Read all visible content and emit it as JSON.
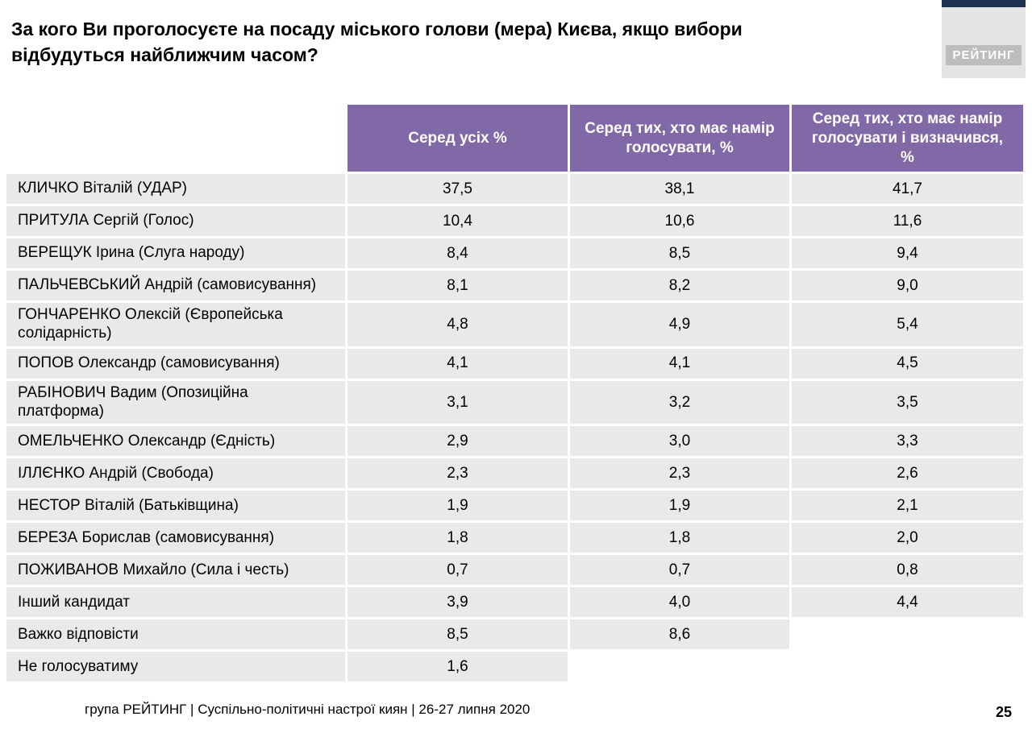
{
  "header": {
    "title": "За кого Ви проголосуєте на посаду міського голови (мера) Києва, якщо вибори відбудуться найближчим часом?",
    "logo_text": "РЕЙТИНГ"
  },
  "chart_data": {
    "type": "table",
    "columns": [
      "Серед усіх %",
      "Серед тих, хто має намір голосувати, %",
      "Серед тих, хто має намір голосувати і визначився, %"
    ],
    "rows": [
      {
        "label": "КЛИЧКО Віталій (УДАР)",
        "values": [
          "37,5",
          "38,1",
          "41,7"
        ]
      },
      {
        "label": "ПРИТУЛА Сергій (Голос)",
        "values": [
          "10,4",
          "10,6",
          "11,6"
        ]
      },
      {
        "label": "ВЕРЕЩУК Ірина (Слуга народу)",
        "values": [
          "8,4",
          "8,5",
          "9,4"
        ]
      },
      {
        "label": "ПАЛЬЧЕВСЬКИЙ Андрій (самовисування)",
        "values": [
          "8,1",
          "8,2",
          "9,0"
        ]
      },
      {
        "label": "ГОНЧАРЕНКО Олексій (Європейська солідарність)",
        "values": [
          "4,8",
          "4,9",
          "5,4"
        ]
      },
      {
        "label": "ПОПОВ Олександр (самовисування)",
        "values": [
          "4,1",
          "4,1",
          "4,5"
        ]
      },
      {
        "label": "РАБІНОВИЧ Вадим (Опозиційна платформа)",
        "values": [
          "3,1",
          "3,2",
          "3,5"
        ]
      },
      {
        "label": "ОМЕЛЬЧЕНКО Олександр (Єдність)",
        "values": [
          "2,9",
          "3,0",
          "3,3"
        ]
      },
      {
        "label": "ІЛЛЄНКО Андрій (Свобода)",
        "values": [
          "2,3",
          "2,3",
          "2,6"
        ]
      },
      {
        "label": "НЕСТОР Віталій (Батьківщина)",
        "values": [
          "1,9",
          "1,9",
          "2,1"
        ]
      },
      {
        "label": "БЕРЕЗА Борислав (самовисування)",
        "values": [
          "1,8",
          "1,8",
          "2,0"
        ]
      },
      {
        "label": "ПОЖИВАНОВ Михайло (Сила і честь)",
        "values": [
          "0,7",
          "0,7",
          "0,8"
        ]
      },
      {
        "label": "Інший кандидат",
        "values": [
          "3,9",
          "4,0",
          "4,4"
        ]
      },
      {
        "label": "Важко відповісти",
        "values": [
          "8,5",
          "8,6",
          ""
        ]
      },
      {
        "label": "Не голосуватиму",
        "values": [
          "1,6",
          "",
          ""
        ]
      }
    ]
  },
  "footer": {
    "text": "група РЕЙТИНГ | Суспільно-політичні настрої киян | 26-27 липня 2020",
    "page_number": "25"
  },
  "colors": {
    "header_purple": "#8169a8",
    "row_gray": "#e9e9e9",
    "logo_navy": "#1f3253"
  }
}
